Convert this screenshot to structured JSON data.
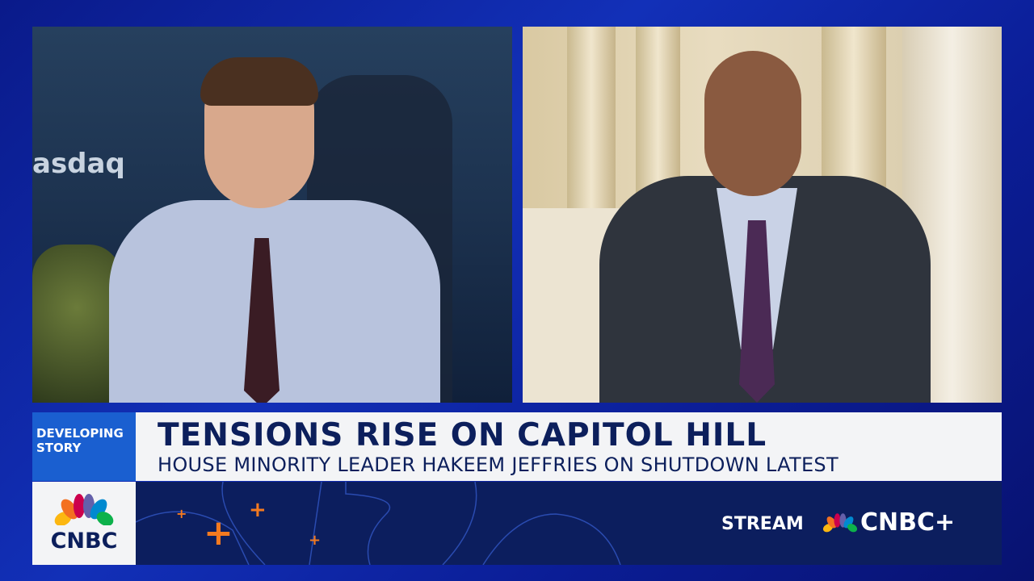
{
  "lower_third": {
    "tag": "DEVELOPING STORY",
    "headline": "TENSIONS RISE ON CAPITOL HILL",
    "subline": "HOUSE MINORITY LEADER HAKEEM JEFFRIES ON SHUTDOWN LATEST"
  },
  "network": {
    "logo": "CNBC",
    "logo_icon": "nbc-peacock-icon"
  },
  "promo": {
    "stream_label": "STREAM",
    "service": "CNBC+"
  },
  "background_sign": "asdaq",
  "colors": {
    "accent_blue": "#1a5fd0",
    "navy": "#0c1e5e",
    "orange": "#f47a20",
    "text_navy": "#0c1f5c"
  }
}
